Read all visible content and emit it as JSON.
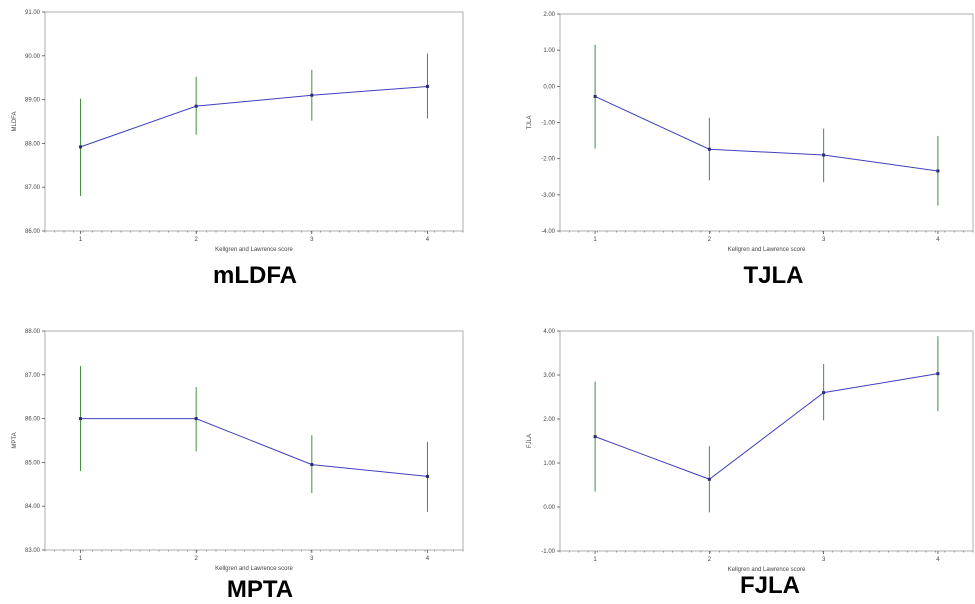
{
  "chart_data": [
    {
      "type": "line",
      "title": "mLDFA",
      "xlabel": "Kellgren and Lawrence score",
      "ylabel": "MLDFA",
      "x": [
        1,
        2,
        3,
        4
      ],
      "values": [
        87.92,
        88.85,
        89.1,
        89.3
      ],
      "error_low": [
        86.8,
        88.2,
        88.52,
        88.57
      ],
      "error_high": [
        89.02,
        89.52,
        89.68,
        90.05
      ],
      "ylim": [
        86,
        91
      ],
      "yticks": [
        "86.00",
        "87.00",
        "88.00",
        "89.00",
        "90.00",
        "91.00"
      ],
      "xticks": [
        "1",
        "2",
        "3",
        "4"
      ],
      "line_color": "#3f3fbf",
      "error_color": "#3f8f3f"
    },
    {
      "type": "line",
      "title": "TJLA",
      "xlabel": "Kellgren and Lawrence score",
      "ylabel": "TJLA",
      "x": [
        1,
        2,
        3,
        4
      ],
      "values": [
        -0.28,
        -1.74,
        -1.9,
        -2.34
      ],
      "error_low": [
        -1.72,
        -2.6,
        -2.65,
        -3.3
      ],
      "error_high": [
        1.15,
        -0.87,
        -1.17,
        -1.37
      ],
      "ylim": [
        -4,
        2
      ],
      "yticks": [
        "-4.00",
        "-3.00",
        "-2.00",
        "-1.00",
        "0.00",
        "1.00",
        "2.00"
      ],
      "xticks": [
        "1",
        "2",
        "3",
        "4"
      ],
      "line_color": "#3f3fbf",
      "error_color": "#3f8f3f"
    },
    {
      "type": "line",
      "title": "MPTA",
      "xlabel": "Kellgren and Lawrence score",
      "ylabel": "MPTA",
      "x": [
        1,
        2,
        3,
        4
      ],
      "values": [
        86.0,
        86.0,
        84.95,
        84.68
      ],
      "error_low": [
        84.8,
        85.25,
        84.3,
        83.87
      ],
      "error_high": [
        87.2,
        86.72,
        85.62,
        85.47
      ],
      "ylim": [
        83,
        88
      ],
      "yticks": [
        "83.00",
        "84.00",
        "85.00",
        "86.00",
        "87.00",
        "88.00"
      ],
      "xticks": [
        "1",
        "2",
        "3",
        "4"
      ],
      "line_color": "#3f3fbf",
      "error_color": "#3f8f3f"
    },
    {
      "type": "line",
      "title": "FJLA",
      "xlabel": "Kellgren and Lawrence score",
      "ylabel": "FJLA",
      "x": [
        1,
        2,
        3,
        4
      ],
      "values": [
        1.6,
        0.63,
        2.6,
        3.03
      ],
      "error_low": [
        0.35,
        -0.12,
        1.97,
        2.18
      ],
      "error_high": [
        2.85,
        1.38,
        3.25,
        3.88
      ],
      "ylim": [
        -1,
        4
      ],
      "yticks": [
        "-1.00",
        "0.00",
        "1.00",
        "2.00",
        "3.00",
        "4.00"
      ],
      "xticks": [
        "1",
        "2",
        "3",
        "4"
      ],
      "line_color": "#3f3fbf",
      "error_color": "#3f8f3f"
    }
  ]
}
